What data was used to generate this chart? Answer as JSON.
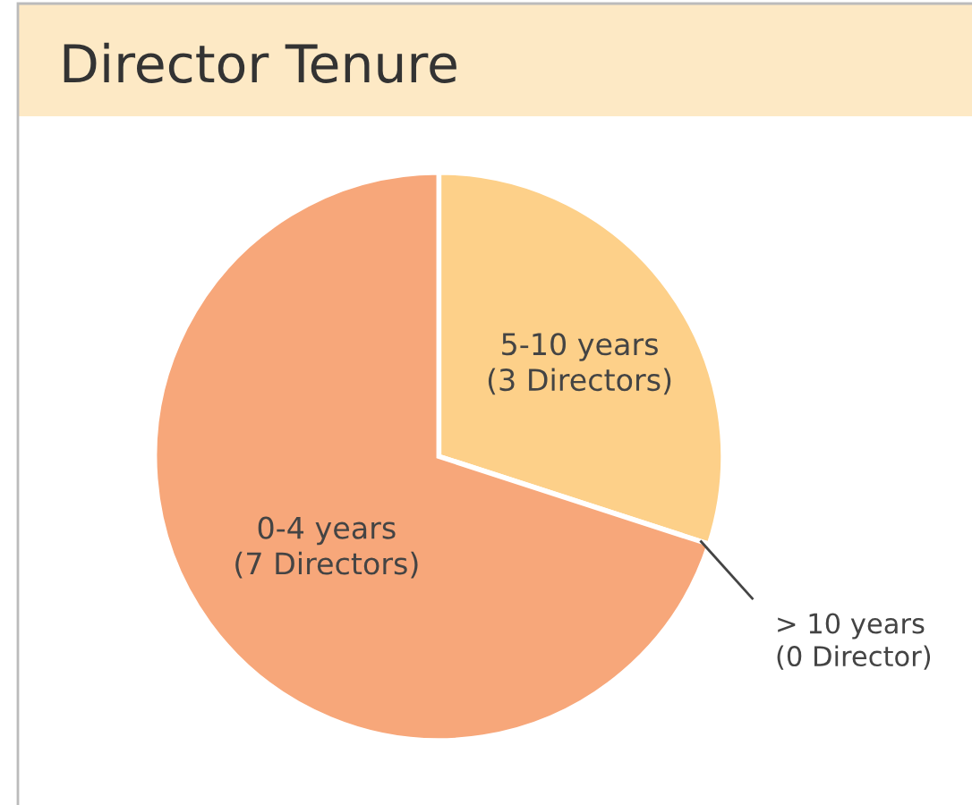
{
  "chart_data": {
    "type": "pie",
    "title": "Director Tenure",
    "categories": [
      "5-10 years",
      "> 10 years",
      "0-4 years"
    ],
    "values": [
      3,
      0,
      7
    ],
    "value_labels": [
      "(3 Directors)",
      "(0 Director)",
      "(7 Directors)"
    ],
    "colors": [
      "#fdd089",
      "#f9b880",
      "#f7a77a"
    ],
    "legend": false
  }
}
